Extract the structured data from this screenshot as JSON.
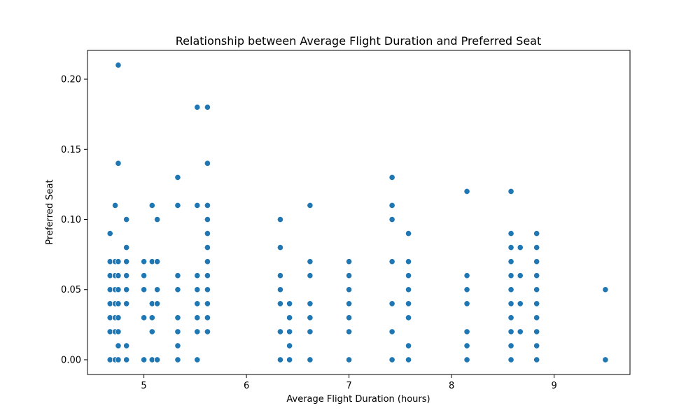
{
  "chart_data": {
    "type": "scatter",
    "title": "Relationship between Average Flight Duration and Preferred Seat",
    "xlabel": "Average Flight Duration (hours)",
    "ylabel": "Preferred Seat",
    "xlim": [
      4.45,
      9.74
    ],
    "ylim": [
      -0.0105,
      0.2205
    ],
    "xticks": [
      5,
      6,
      7,
      8,
      9
    ],
    "xtick_labels": [
      "5",
      "6",
      "7",
      "8",
      "9"
    ],
    "yticks": [
      0.0,
      0.05,
      0.1,
      0.15,
      0.2
    ],
    "ytick_labels": [
      "0.00",
      "0.05",
      "0.10",
      "0.15",
      "0.20"
    ],
    "grid": false,
    "marker_color": "#1f77b4",
    "points": [
      [
        4.67,
        0.09
      ],
      [
        4.67,
        0.07
      ],
      [
        4.67,
        0.06
      ],
      [
        4.67,
        0.05
      ],
      [
        4.67,
        0.04
      ],
      [
        4.67,
        0.03
      ],
      [
        4.67,
        0.02
      ],
      [
        4.67,
        0.0
      ],
      [
        4.72,
        0.11
      ],
      [
        4.72,
        0.07
      ],
      [
        4.72,
        0.06
      ],
      [
        4.72,
        0.05
      ],
      [
        4.72,
        0.04
      ],
      [
        4.72,
        0.03
      ],
      [
        4.72,
        0.02
      ],
      [
        4.72,
        0.0
      ],
      [
        4.75,
        0.21
      ],
      [
        4.75,
        0.14
      ],
      [
        4.75,
        0.07
      ],
      [
        4.75,
        0.06
      ],
      [
        4.75,
        0.05
      ],
      [
        4.75,
        0.04
      ],
      [
        4.75,
        0.03
      ],
      [
        4.75,
        0.02
      ],
      [
        4.75,
        0.01
      ],
      [
        4.75,
        0.0
      ],
      [
        4.83,
        0.1
      ],
      [
        4.83,
        0.08
      ],
      [
        4.83,
        0.07
      ],
      [
        4.83,
        0.06
      ],
      [
        4.83,
        0.05
      ],
      [
        4.83,
        0.04
      ],
      [
        4.83,
        0.01
      ],
      [
        4.83,
        0.0
      ],
      [
        5.0,
        0.07
      ],
      [
        5.0,
        0.06
      ],
      [
        5.0,
        0.05
      ],
      [
        5.0,
        0.03
      ],
      [
        5.0,
        0.0
      ],
      [
        5.08,
        0.11
      ],
      [
        5.08,
        0.07
      ],
      [
        5.08,
        0.04
      ],
      [
        5.08,
        0.03
      ],
      [
        5.08,
        0.02
      ],
      [
        5.08,
        0.0
      ],
      [
        5.13,
        0.1
      ],
      [
        5.13,
        0.07
      ],
      [
        5.13,
        0.05
      ],
      [
        5.13,
        0.04
      ],
      [
        5.13,
        0.0
      ],
      [
        5.33,
        0.13
      ],
      [
        5.33,
        0.11
      ],
      [
        5.33,
        0.06
      ],
      [
        5.33,
        0.05
      ],
      [
        5.33,
        0.03
      ],
      [
        5.33,
        0.02
      ],
      [
        5.33,
        0.01
      ],
      [
        5.33,
        0.0
      ],
      [
        5.52,
        0.18
      ],
      [
        5.52,
        0.11
      ],
      [
        5.52,
        0.06
      ],
      [
        5.52,
        0.05
      ],
      [
        5.52,
        0.04
      ],
      [
        5.52,
        0.03
      ],
      [
        5.52,
        0.02
      ],
      [
        5.52,
        0.0
      ],
      [
        5.62,
        0.18
      ],
      [
        5.62,
        0.14
      ],
      [
        5.62,
        0.11
      ],
      [
        5.62,
        0.1
      ],
      [
        5.62,
        0.09
      ],
      [
        5.62,
        0.08
      ],
      [
        5.62,
        0.07
      ],
      [
        5.62,
        0.06
      ],
      [
        5.62,
        0.05
      ],
      [
        5.62,
        0.04
      ],
      [
        5.62,
        0.03
      ],
      [
        5.62,
        0.02
      ],
      [
        6.33,
        0.1
      ],
      [
        6.33,
        0.08
      ],
      [
        6.33,
        0.06
      ],
      [
        6.33,
        0.05
      ],
      [
        6.33,
        0.04
      ],
      [
        6.33,
        0.02
      ],
      [
        6.33,
        0.0
      ],
      [
        6.42,
        0.04
      ],
      [
        6.42,
        0.03
      ],
      [
        6.42,
        0.02
      ],
      [
        6.42,
        0.01
      ],
      [
        6.42,
        0.0
      ],
      [
        6.62,
        0.11
      ],
      [
        6.62,
        0.07
      ],
      [
        6.62,
        0.06
      ],
      [
        6.62,
        0.04
      ],
      [
        6.62,
        0.03
      ],
      [
        6.62,
        0.02
      ],
      [
        6.62,
        0.0
      ],
      [
        7.0,
        0.07
      ],
      [
        7.0,
        0.06
      ],
      [
        7.0,
        0.05
      ],
      [
        7.0,
        0.04
      ],
      [
        7.0,
        0.03
      ],
      [
        7.0,
        0.02
      ],
      [
        7.0,
        0.0
      ],
      [
        7.42,
        0.13
      ],
      [
        7.42,
        0.11
      ],
      [
        7.42,
        0.1
      ],
      [
        7.42,
        0.07
      ],
      [
        7.42,
        0.04
      ],
      [
        7.42,
        0.02
      ],
      [
        7.42,
        0.0
      ],
      [
        7.58,
        0.09
      ],
      [
        7.58,
        0.07
      ],
      [
        7.58,
        0.06
      ],
      [
        7.58,
        0.05
      ],
      [
        7.58,
        0.04
      ],
      [
        7.58,
        0.03
      ],
      [
        7.58,
        0.01
      ],
      [
        7.58,
        0.0
      ],
      [
        8.15,
        0.12
      ],
      [
        8.15,
        0.06
      ],
      [
        8.15,
        0.05
      ],
      [
        8.15,
        0.04
      ],
      [
        8.15,
        0.02
      ],
      [
        8.15,
        0.01
      ],
      [
        8.15,
        0.0
      ],
      [
        8.58,
        0.12
      ],
      [
        8.58,
        0.09
      ],
      [
        8.58,
        0.08
      ],
      [
        8.58,
        0.07
      ],
      [
        8.58,
        0.06
      ],
      [
        8.58,
        0.05
      ],
      [
        8.58,
        0.04
      ],
      [
        8.58,
        0.03
      ],
      [
        8.58,
        0.02
      ],
      [
        8.58,
        0.01
      ],
      [
        8.58,
        0.0
      ],
      [
        8.67,
        0.08
      ],
      [
        8.67,
        0.06
      ],
      [
        8.67,
        0.04
      ],
      [
        8.67,
        0.02
      ],
      [
        8.83,
        0.09
      ],
      [
        8.83,
        0.08
      ],
      [
        8.83,
        0.07
      ],
      [
        8.83,
        0.06
      ],
      [
        8.83,
        0.05
      ],
      [
        8.83,
        0.04
      ],
      [
        8.83,
        0.03
      ],
      [
        8.83,
        0.02
      ],
      [
        8.83,
        0.01
      ],
      [
        8.83,
        0.0
      ],
      [
        9.5,
        0.05
      ],
      [
        9.5,
        0.0
      ]
    ]
  }
}
